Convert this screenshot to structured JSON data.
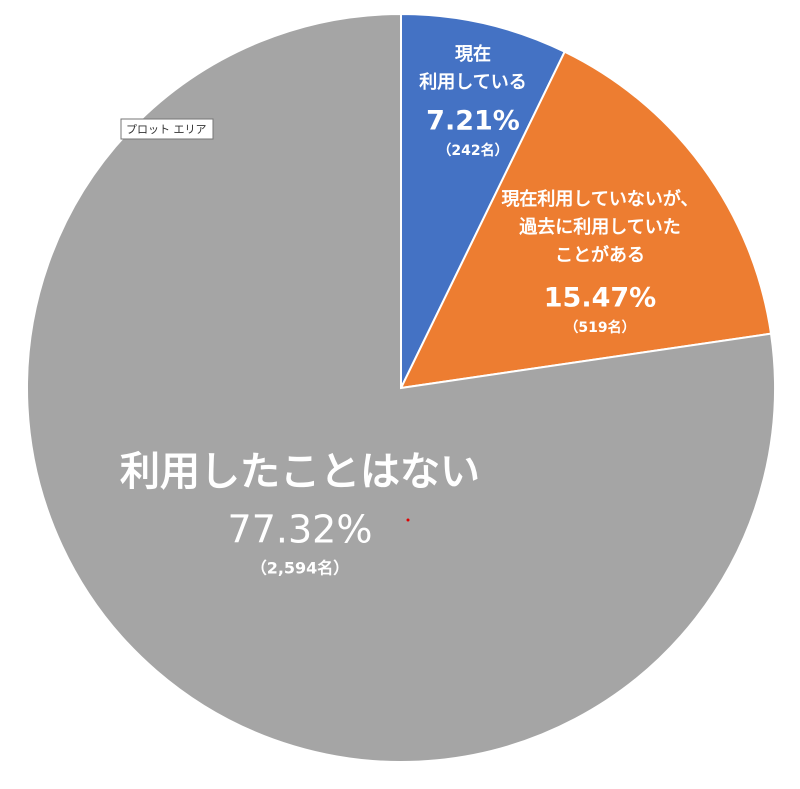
{
  "chart_data": {
    "type": "pie",
    "categories": [
      "現在\n利用している",
      "現在利用していないが、\n過去に利用していた\nことがある",
      "利用したことはない"
    ],
    "values": [
      7.21,
      15.47,
      77.32
    ],
    "value_labels": [
      "7.21%",
      "15.47%",
      "77.32%"
    ],
    "count_labels": [
      "（242名）",
      "（519名）",
      "（2,594名）"
    ],
    "colors": [
      "#4472c4",
      "#ed7d31",
      "#a5a5a5"
    ],
    "tooltip": "プロット エリア"
  }
}
